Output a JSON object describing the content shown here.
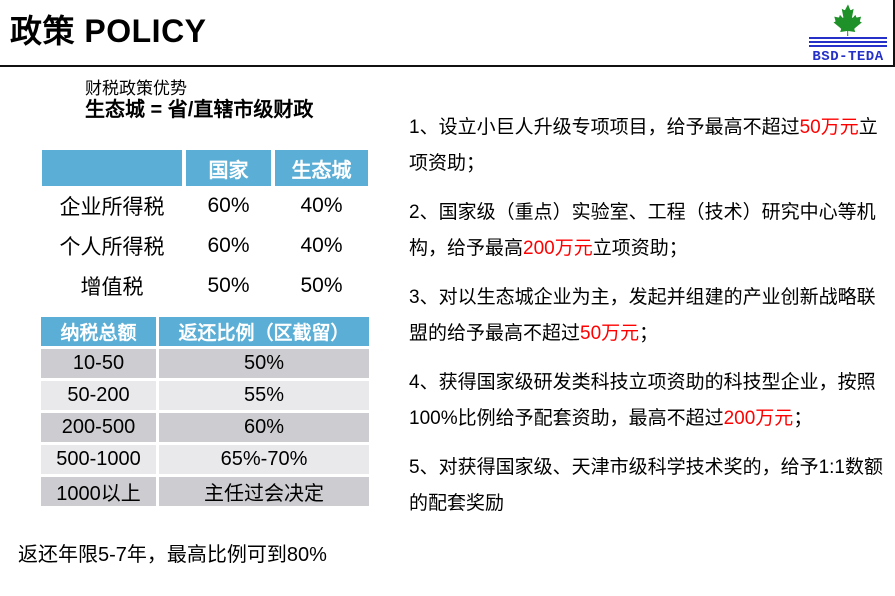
{
  "page": {
    "title": "政策 POLICY"
  },
  "logo": {
    "text": "BSD-TEDA"
  },
  "intro": {
    "line1": "财税政策优势",
    "line2": "生态城 = 省/直辖市级财政"
  },
  "tax_table": {
    "headers": [
      "",
      "国家",
      "生态城"
    ],
    "rows": [
      [
        "企业所得税",
        "60%",
        "40%"
      ],
      [
        "个人所得税",
        "60%",
        "40%"
      ],
      [
        "增值税",
        "50%",
        "50%"
      ]
    ]
  },
  "rebate_table": {
    "headers": [
      "纳税总额",
      "返还比例（区截留）"
    ],
    "rows": [
      [
        "10-50",
        "50%"
      ],
      [
        "50-200",
        "55%"
      ],
      [
        "200-500",
        "60%"
      ],
      [
        "500-1000",
        "65%-70%"
      ],
      [
        "1000以上",
        "主任过会决定"
      ]
    ]
  },
  "note": "返还年限5-7年，最高比例可到80%",
  "policies": [
    {
      "segments": [
        {
          "text": "1、设立小巨人升级专项项目，给予最高不超过"
        },
        {
          "text": "50万元",
          "highlight": true
        },
        {
          "text": "立项资助；"
        }
      ]
    },
    {
      "segments": [
        {
          "text": "2、国家级（重点）实验室、工程（技术）研究中心等机构，给予最高"
        },
        {
          "text": "200万元",
          "highlight": true
        },
        {
          "text": "立项资助；"
        }
      ]
    },
    {
      "segments": [
        {
          "text": "3、对以生态城企业为主，发起并组建的产业创新战略联盟的给予最高不超过"
        },
        {
          "text": "50万元",
          "highlight": true
        },
        {
          "text": "；"
        }
      ]
    },
    {
      "segments": [
        {
          "text": "4、获得国家级研发类科技立项资助的科技型企业，按照100%比例给予配套资助，最高不超过"
        },
        {
          "text": "200万元",
          "highlight": true
        },
        {
          "text": "；"
        }
      ]
    },
    {
      "segments": [
        {
          "text": "5、对获得国家级、天津市级科学技术奖的，给予1:1数额的配套奖励"
        }
      ]
    }
  ],
  "colors": {
    "table_header_bg": "#5BAFD6",
    "row_dark": "#CDCDD1",
    "row_light": "#E9E9EC",
    "highlight_text": "#FF0000",
    "logo_green": "#1E9128",
    "logo_blue": "#2430C8"
  }
}
